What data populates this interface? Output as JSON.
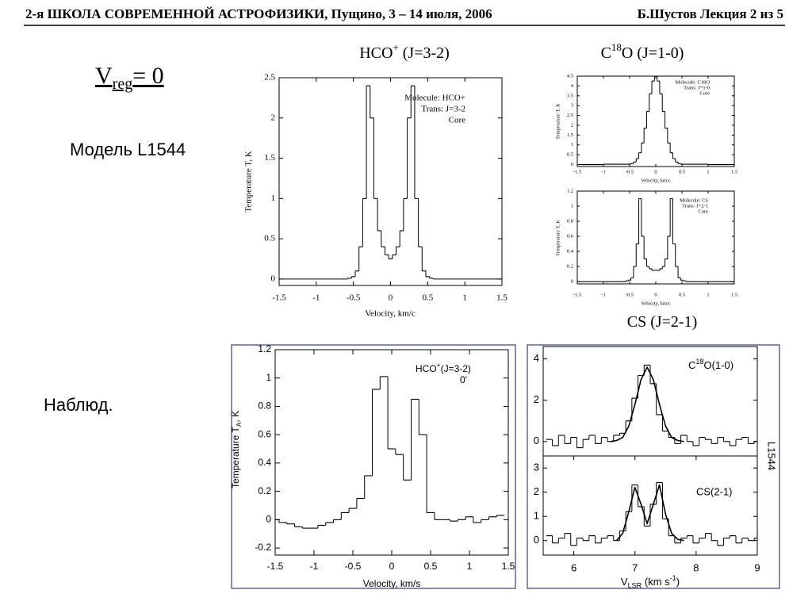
{
  "header": {
    "left": "2-я ШКОЛА СОВРЕМЕННОЙ АСТРОФИЗИКИ, Пущино, 3 – 14 июля, 2006",
    "right": "Б.Шустов Лекция 2 из 5"
  },
  "slide": {
    "vreg": [
      "V",
      "reg",
      "= 0"
    ],
    "model_label": "Модель L1544",
    "obs_label": "Наблюд.",
    "titles": [
      [
        "HCO",
        "+",
        " (J=3-2)"
      ],
      [
        "C",
        "18",
        "O (J=1-0)"
      ],
      [
        "CS (J=2-1)"
      ]
    ]
  },
  "chart_data": [
    {
      "type": "line",
      "x": [
        -1.5,
        -0.6,
        -0.55,
        -0.5,
        -0.45,
        -0.4,
        -0.35,
        -0.3,
        -0.25,
        -0.2,
        -0.15,
        -0.1,
        -0.05,
        0,
        0.05,
        0.1,
        0.15,
        0.2,
        0.25,
        0.3,
        0.35,
        0.4,
        0.45,
        0.5,
        0.55,
        0.6,
        1.5
      ],
      "series": [
        {
          "color": "#000000",
          "step": true,
          "values": [
            0,
            0,
            0.01,
            0.03,
            0.1,
            0.4,
            1.0,
            2.4,
            2.0,
            1.0,
            0.6,
            0.4,
            0.3,
            0.25,
            0.3,
            0.4,
            0.6,
            1.0,
            2.0,
            2.4,
            1.0,
            0.4,
            0.1,
            0.03,
            0.01,
            0,
            0
          ]
        }
      ],
      "xlim": [
        -1.5,
        1.5
      ],
      "ylim": [
        -0.08,
        2.5
      ],
      "xticks": [
        -1.5,
        -1,
        -0.5,
        0,
        0.5,
        1,
        1.5
      ],
      "yticks": [
        0,
        0.5,
        1,
        1.5,
        2,
        2.5
      ],
      "xlabel": "Velocity, km/c",
      "ylabel": "Temperature T, K",
      "annotations": [
        "Molecule: HCO+",
        "Trans: J=3-2",
        "Core"
      ]
    },
    {
      "type": "line",
      "x": [
        -1.5,
        -0.5,
        -0.45,
        -0.4,
        -0.35,
        -0.3,
        -0.25,
        -0.2,
        -0.15,
        -0.1,
        -0.05,
        0,
        0.05,
        0.1,
        0.15,
        0.2,
        0.25,
        0.3,
        0.35,
        0.4,
        0.45,
        0.5,
        1.5
      ],
      "series": [
        {
          "color": "#000000",
          "step": true,
          "values": [
            0,
            0.02,
            0.05,
            0.13,
            0.3,
            0.6,
            1.1,
            1.85,
            2.7,
            3.6,
            4.25,
            4.5,
            4.25,
            3.6,
            2.7,
            1.85,
            1.1,
            0.6,
            0.3,
            0.13,
            0.05,
            0.02,
            0
          ]
        }
      ],
      "xlim": [
        -1.5,
        1.5
      ],
      "ylim": [
        -0.1,
        4.5
      ],
      "xticks": [
        -1.5,
        -1,
        -0.5,
        0,
        0.5,
        1,
        1.5
      ],
      "yticks": [
        0,
        0.5,
        1,
        1.5,
        2,
        2.5,
        3,
        3.5,
        4,
        4.5
      ],
      "xlabel": "Velocity, km/c",
      "ylabel": "Temperature T, K",
      "annotations": [
        "Molecule: C18O",
        "Trans: J=1-0",
        "Core"
      ]
    },
    {
      "type": "line",
      "x": [
        -1.5,
        -0.6,
        -0.55,
        -0.5,
        -0.45,
        -0.4,
        -0.35,
        -0.3,
        -0.25,
        -0.2,
        -0.15,
        -0.1,
        -0.05,
        0,
        0.05,
        0.1,
        0.15,
        0.2,
        0.25,
        0.3,
        0.35,
        0.4,
        0.45,
        0.5,
        0.55,
        0.6,
        1.5
      ],
      "series": [
        {
          "color": "#000000",
          "step": true,
          "values": [
            0,
            0,
            0.01,
            0.02,
            0.05,
            0.2,
            0.5,
            1.1,
            0.6,
            0.3,
            0.2,
            0.17,
            0.15,
            0.15,
            0.15,
            0.17,
            0.2,
            0.3,
            0.6,
            1.1,
            0.5,
            0.2,
            0.05,
            0.02,
            0.01,
            0,
            0
          ]
        }
      ],
      "xlim": [
        -1.5,
        1.5
      ],
      "ylim": [
        -0.03,
        1.2
      ],
      "xticks": [
        -1.5,
        -1,
        -0.5,
        0,
        0.5,
        1,
        1.5
      ],
      "yticks": [
        0,
        0.2,
        0.4,
        0.6,
        0.8,
        1,
        1.2
      ],
      "xlabel": "Velocity, km/c",
      "ylabel": "Temperature T, K",
      "annotations": [
        "Molecule: CS",
        "Trans: J=2-1",
        "Core"
      ]
    },
    {
      "type": "line",
      "x": [
        -1.5,
        -1.4,
        -1.3,
        -1.2,
        -1.1,
        -1.0,
        -0.9,
        -0.8,
        -0.7,
        -0.6,
        -0.5,
        -0.4,
        -0.3,
        -0.2,
        -0.1,
        0.0,
        0.1,
        0.2,
        0.3,
        0.4,
        0.5,
        0.6,
        0.7,
        0.8,
        0.9,
        1.0,
        1.1,
        1.2,
        1.3,
        1.4
      ],
      "series": [
        {
          "color": "#000000",
          "step": true,
          "values": [
            0.0,
            -0.02,
            -0.03,
            -0.05,
            -0.06,
            -0.06,
            -0.04,
            -0.02,
            0.0,
            0.05,
            0.08,
            0.15,
            0.31,
            0.92,
            1.01,
            0.5,
            0.46,
            0.28,
            0.85,
            0.6,
            0.05,
            0.0,
            0.0,
            -0.01,
            0.0,
            0.02,
            -0.02,
            0.0,
            0.02,
            0.03
          ]
        }
      ],
      "xlim": [
        -1.5,
        1.5
      ],
      "ylim": [
        -0.25,
        1.2
      ],
      "xticks": [
        -1.5,
        -1,
        -0.5,
        0,
        0.5,
        1,
        1.5
      ],
      "yticks": [
        -0.2,
        0,
        0.2,
        0.4,
        0.6,
        0.8,
        1,
        1.2
      ],
      "xlabel": "Velocity, km/s",
      "ylabel": [
        "Temperature T",
        "A",
        ", K"
      ],
      "annotations": [
        [
          "HCO",
          "+",
          "(J=3-2)"
        ],
        "0'"
      ]
    },
    {
      "type": "line",
      "x": [
        5.6,
        5.7,
        5.8,
        5.9,
        6.0,
        6.1,
        6.2,
        6.3,
        6.4,
        6.5,
        6.6,
        6.7,
        6.8,
        6.9,
        7.0,
        7.1,
        7.2,
        7.3,
        7.4,
        7.5,
        7.6,
        7.7,
        7.8,
        7.9,
        8.0,
        8.1,
        8.2,
        8.3,
        8.4,
        8.5,
        8.6,
        8.7,
        8.8,
        8.9,
        9.0
      ],
      "series": [
        {
          "color": "#000000",
          "step": true,
          "values": [
            0.1,
            -0.2,
            0.3,
            -0.1,
            0.2,
            -0.3,
            0.1,
            0.3,
            -0.1,
            0.2,
            0.0,
            0.3,
            0.4,
            1.0,
            2.1,
            3.2,
            3.7,
            2.8,
            1.3,
            0.5,
            0.2,
            -0.1,
            0.3,
            0.0,
            -0.2,
            0.2,
            0.1,
            -0.1,
            0.2,
            0.0,
            -0.2,
            0.1,
            0.2,
            -0.1,
            0.0
          ]
        },
        {
          "color": "#000000",
          "step": false,
          "x": [
            6.6,
            6.7,
            6.8,
            6.9,
            7.0,
            7.1,
            7.2,
            7.3,
            7.4,
            7.5,
            7.6,
            7.7,
            7.8
          ],
          "values": [
            0.0,
            0.05,
            0.2,
            0.75,
            1.8,
            3.0,
            3.6,
            3.0,
            1.8,
            0.75,
            0.2,
            0.05,
            0.0
          ]
        }
      ],
      "xlim": [
        5.5,
        9
      ],
      "ylim": [
        -0.7,
        4.6
      ],
      "yticks": [
        0,
        2,
        4
      ],
      "annotations": [
        [
          "C",
          "18",
          "O(1-0)"
        ],
        "L1544"
      ]
    },
    {
      "type": "line",
      "x": [
        5.6,
        5.7,
        5.8,
        5.9,
        6.0,
        6.1,
        6.2,
        6.3,
        6.4,
        6.5,
        6.6,
        6.7,
        6.8,
        6.9,
        7.0,
        7.1,
        7.2,
        7.3,
        7.4,
        7.5,
        7.6,
        7.7,
        7.8,
        7.9,
        8.0,
        8.1,
        8.2,
        8.3,
        8.4,
        8.5,
        8.6,
        8.7,
        8.8,
        8.9,
        9.0
      ],
      "series": [
        {
          "color": "#000000",
          "step": true,
          "values": [
            0.2,
            -0.1,
            0.1,
            0.3,
            -0.2,
            0.1,
            0.0,
            0.2,
            -0.1,
            0.1,
            0.2,
            0.0,
            0.4,
            1.2,
            2.3,
            1.4,
            0.6,
            1.5,
            2.4,
            0.9,
            0.2,
            -0.1,
            0.1,
            0.2,
            -0.1,
            0.1,
            0.3,
            0.0,
            -0.2,
            0.1,
            0.2,
            -0.1,
            0.1,
            0.0,
            0.1
          ]
        },
        {
          "color": "#000000",
          "step": false,
          "x": [
            6.7,
            6.8,
            6.9,
            7.0,
            7.1,
            7.2,
            7.3,
            7.4,
            7.5,
            7.6,
            7.7,
            7.8
          ],
          "values": [
            0.0,
            0.3,
            1.2,
            2.2,
            1.5,
            0.7,
            1.5,
            2.3,
            1.1,
            0.3,
            0.05,
            0.0
          ]
        }
      ],
      "xlim": [
        5.5,
        9
      ],
      "ylim": [
        -0.6,
        3.5
      ],
      "xticks": [
        6,
        7,
        8,
        9
      ],
      "yticks": [
        0,
        1,
        2,
        3
      ],
      "xlabel": [
        "V",
        "LSR",
        " (km s",
        "-1",
        ")"
      ],
      "annotations": [
        "CS(2-1)"
      ]
    }
  ]
}
